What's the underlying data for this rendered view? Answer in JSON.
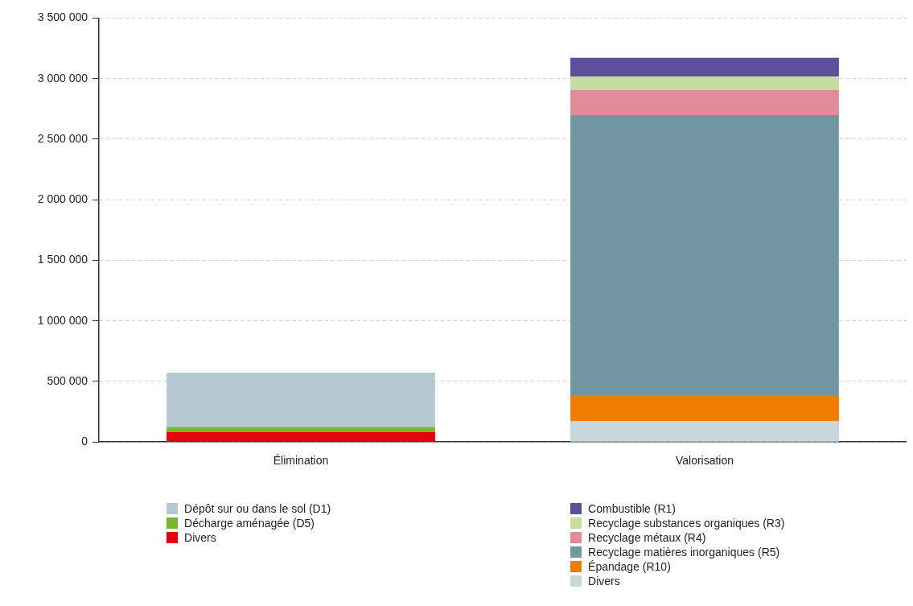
{
  "chart_data": {
    "type": "bar",
    "stacked": true,
    "categories": [
      "Élimination",
      "Valorisation"
    ],
    "series": [
      {
        "name": "Divers",
        "color": "#e3000f",
        "values": [
          82000,
          null
        ]
      },
      {
        "name": "Décharge aménagée (D5)",
        "color": "#76b82a",
        "values": [
          43000,
          null
        ]
      },
      {
        "name": "Dépôt sur ou dans le sol (D1)",
        "color": "#b5c9d0",
        "values": [
          448000,
          null
        ]
      },
      {
        "name": "Divers",
        "color": "#c8d7dc",
        "values": [
          null,
          171000
        ]
      },
      {
        "name": "Épandage (R10)",
        "color": "#ef7d00",
        "values": [
          null,
          216000
        ]
      },
      {
        "name": "Recyclage matières inorganiques (R5)",
        "color": "#7197a2",
        "values": [
          null,
          2312000
        ]
      },
      {
        "name": "Recyclage métaux (R4)",
        "color": "#e08c9a",
        "values": [
          null,
          208000
        ]
      },
      {
        "name": "Recyclage substances organiques (R3)",
        "color": "#c6dd9f",
        "values": [
          null,
          109000
        ]
      },
      {
        "name": "Combustible (R1)",
        "color": "#5e4f9c",
        "values": [
          null,
          156000
        ]
      }
    ],
    "ylim": [
      0,
      3500000
    ],
    "yticks": [
      0,
      {
        "value": 500000,
        "label": "500 000"
      },
      {
        "value": 1000000,
        "label": "1 000 000"
      },
      {
        "value": 1500000,
        "label": "1 500 000"
      },
      {
        "value": 2000000,
        "label": "2 000 000"
      },
      {
        "value": 2500000,
        "label": "2 500 000"
      },
      {
        "value": 3000000,
        "label": "3 000 000"
      },
      {
        "value": 3500000,
        "label": "3 500 000"
      }
    ],
    "grid": "y",
    "legend": "bottom"
  }
}
